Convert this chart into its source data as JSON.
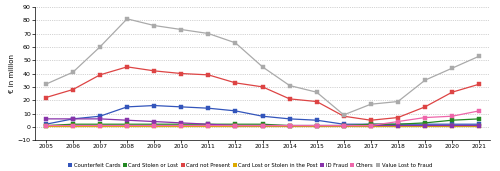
{
  "years": [
    2005,
    2006,
    2007,
    2008,
    2009,
    2010,
    2011,
    2012,
    2013,
    2014,
    2015,
    2016,
    2017,
    2018,
    2019,
    2020,
    2021
  ],
  "counterfeit_cards": [
    2,
    6,
    8,
    15,
    16,
    15,
    14,
    12,
    8,
    6,
    5,
    2,
    2,
    2,
    2,
    2,
    2
  ],
  "card_stolen_or_lost": [
    1,
    2,
    2,
    2,
    2,
    2,
    2,
    2,
    2,
    1,
    1,
    1,
    2,
    2,
    3,
    5,
    6
  ],
  "card_not_present": [
    22,
    28,
    39,
    45,
    42,
    40,
    39,
    33,
    30,
    21,
    19,
    8,
    5,
    7,
    15,
    26,
    32
  ],
  "card_lost_stolen_post": [
    0.5,
    0.5,
    0.5,
    0.5,
    0.5,
    0.5,
    0.5,
    0.5,
    0.5,
    0.5,
    0.5,
    0.5,
    0.5,
    0.5,
    0.5,
    0.5,
    0.5
  ],
  "id_fraud": [
    6,
    6,
    6,
    5,
    4,
    3,
    2,
    1,
    1,
    1,
    1,
    1,
    1,
    1,
    1,
    1,
    1
  ],
  "others": [
    1,
    1,
    1,
    1,
    1,
    1,
    1,
    1,
    1,
    1,
    1,
    1,
    1,
    4,
    7,
    8,
    12
  ],
  "value_lost_to_fraud": [
    32,
    41,
    60,
    81,
    76,
    73,
    70,
    63,
    45,
    31,
    26,
    9,
    17,
    19,
    35,
    44,
    53
  ],
  "colors": {
    "counterfeit_cards": "#3355bb",
    "card_stolen_or_lost": "#228822",
    "card_not_present": "#dd4444",
    "card_lost_stolen_post": "#ddaa00",
    "id_fraud": "#8833aa",
    "others": "#ee66aa",
    "value_lost_to_fraud": "#aaaaaa"
  },
  "ylabel": "€ in million",
  "ylim": [
    -10,
    90
  ],
  "yticks": [
    -10,
    0,
    10,
    20,
    30,
    40,
    50,
    60,
    70,
    80,
    90
  ],
  "legend_labels": [
    "Counterfeit Cards",
    "Card Stolen or Lost",
    "Card not Present",
    "Card Lost or Stolen in the Post",
    "ID Fraud",
    "Others",
    "Value Lost to Fraud"
  ]
}
